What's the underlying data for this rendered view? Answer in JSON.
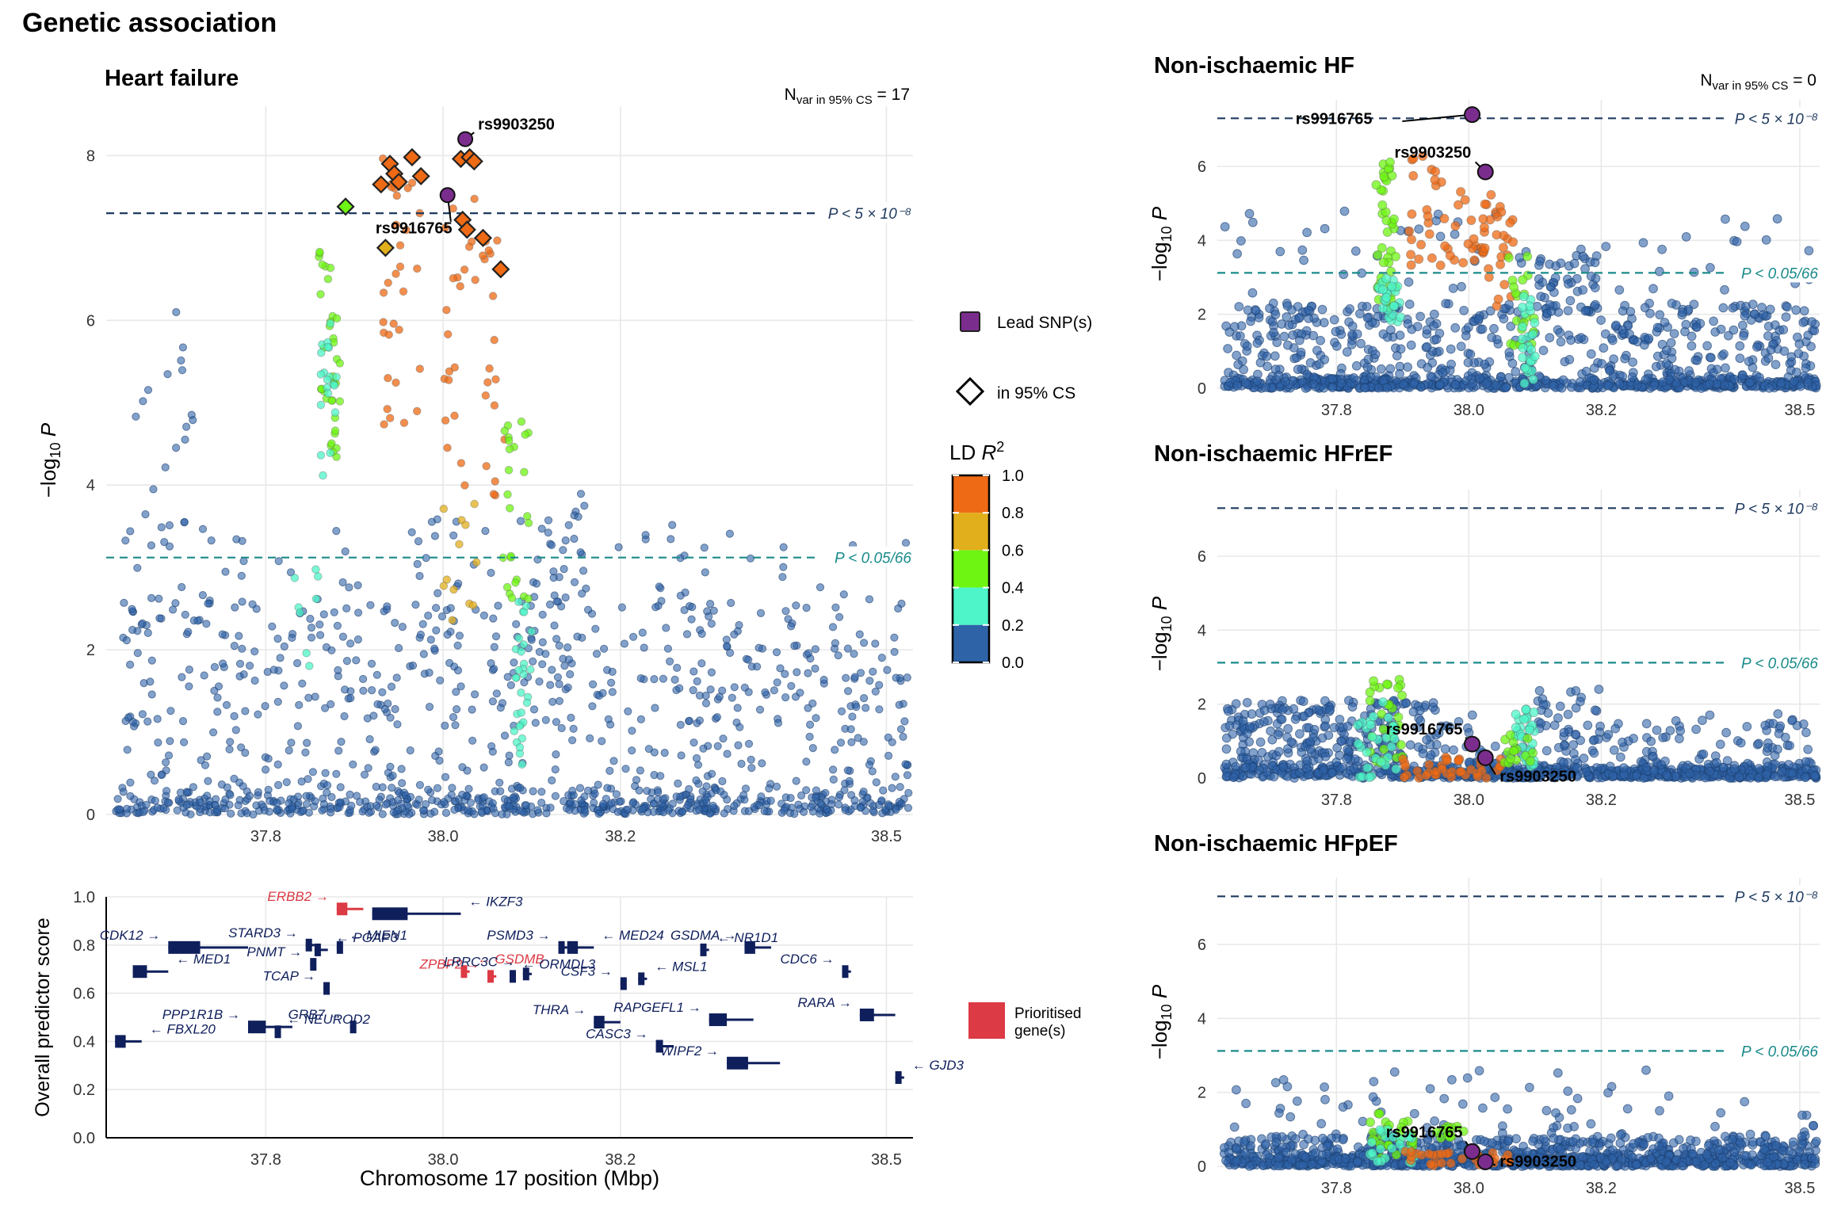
{
  "figure_title": "Genetic association",
  "colors": {
    "lead": "#7B2D8E",
    "ld_bins": [
      "#2E63A8",
      "#4DF5C8",
      "#6EF512",
      "#E2AF1C",
      "#EE6A14"
    ],
    "genome_line": "#1F3A5F",
    "suggestive_line": "#1A8A8A",
    "gene": "#0F1F5C",
    "prioritised_gene": "#DC3A45"
  },
  "legend": {
    "lead_label": "Lead SNP(s)",
    "cs_label": "in 95% CS",
    "ld_title": "LD R²",
    "ld_ticks": [
      "1.0",
      "0.8",
      "0.6",
      "0.4",
      "0.2",
      "0.0"
    ],
    "prioritised_label_1": "Prioritised",
    "prioritised_label_2": "gene(s)"
  },
  "chart_data": [
    {
      "type": "scatter",
      "panel": "main",
      "title": "Heart failure",
      "nvar_label": "N",
      "nvar_sub": "var in 95% CS",
      "nvar_value": " = 17",
      "ylabel": "−log₁₀ P",
      "xlim": [
        37.62,
        38.53
      ],
      "ylim": [
        0,
        8.6
      ],
      "x_ticks": [
        "37.8",
        "38.0",
        "38.2",
        "38.5"
      ],
      "x_tick_values": [
        37.8,
        38.0,
        38.2,
        38.5
      ],
      "y_ticks": [
        "0",
        "2",
        "4",
        "6",
        "8"
      ],
      "y_tick_values": [
        0,
        2,
        4,
        6,
        8
      ],
      "threshold_genome_label": "P < 5 × 10⁻⁸",
      "threshold_genome_value": 7.3,
      "threshold_suggestive_label": "P < 0.05/66",
      "threshold_suggestive_value": 3.12,
      "lead_snps": [
        {
          "id": "rs9903250",
          "x": 38.025,
          "y": 8.2
        },
        {
          "id": "rs9916765",
          "x": 38.005,
          "y": 7.52
        }
      ],
      "credible_set": [
        {
          "x": 37.89,
          "y": 7.38,
          "ld": 0.45
        },
        {
          "x": 37.93,
          "y": 7.65,
          "ld": 0.9
        },
        {
          "x": 37.94,
          "y": 7.9,
          "ld": 0.9
        },
        {
          "x": 37.945,
          "y": 7.78,
          "ld": 0.9
        },
        {
          "x": 37.95,
          "y": 7.68,
          "ld": 0.9
        },
        {
          "x": 37.965,
          "y": 7.98,
          "ld": 0.9
        },
        {
          "x": 37.975,
          "y": 7.75,
          "ld": 0.9
        },
        {
          "x": 37.935,
          "y": 6.88,
          "ld": 0.7
        },
        {
          "x": 38.02,
          "y": 7.96,
          "ld": 0.95
        },
        {
          "x": 38.03,
          "y": 7.98,
          "ld": 0.95
        },
        {
          "x": 38.035,
          "y": 7.93,
          "ld": 0.95
        },
        {
          "x": 38.022,
          "y": 7.22,
          "ld": 0.9
        },
        {
          "x": 38.027,
          "y": 7.1,
          "ld": 0.9
        },
        {
          "x": 38.045,
          "y": 7.0,
          "ld": 0.9
        },
        {
          "x": 38.065,
          "y": 6.62,
          "ld": 0.9
        }
      ]
    },
    {
      "type": "scatter",
      "panel": "non_isch_hf",
      "title": "Non-ischaemic HF",
      "nvar_label": "N",
      "nvar_sub": "var in 95% CS",
      "nvar_value": " = 0",
      "ylabel": "−log₁₀ P",
      "xlim": [
        37.62,
        38.53
      ],
      "ylim": [
        0,
        7.8
      ],
      "x_ticks": [
        "37.8",
        "38.0",
        "38.2",
        "38.5"
      ],
      "x_tick_values": [
        37.8,
        38.0,
        38.2,
        38.5
      ],
      "y_ticks": [
        "0",
        "2",
        "4",
        "6"
      ],
      "y_tick_values": [
        0,
        2,
        4,
        6
      ],
      "threshold_genome_label": "P < 5 × 10⁻⁸",
      "threshold_genome_value": 7.3,
      "threshold_suggestive_label": "P < 0.05/66",
      "threshold_suggestive_value": 3.12,
      "lead_snps": [
        {
          "id": "rs9916765",
          "x": 38.005,
          "y": 7.4
        },
        {
          "id": "rs9903250",
          "x": 38.025,
          "y": 5.85
        }
      ]
    },
    {
      "type": "scatter",
      "panel": "non_isch_hfref",
      "title": "Non-ischaemic HFrEF",
      "ylabel": "−log₁₀ P",
      "xlim": [
        37.62,
        38.53
      ],
      "ylim": [
        0,
        7.8
      ],
      "x_ticks": [
        "37.8",
        "38.0",
        "38.2",
        "38.5"
      ],
      "x_tick_values": [
        37.8,
        38.0,
        38.2,
        38.5
      ],
      "y_ticks": [
        "0",
        "2",
        "4",
        "6"
      ],
      "y_tick_values": [
        0,
        2,
        4,
        6
      ],
      "threshold_genome_label": "P < 5 × 10⁻⁸",
      "threshold_genome_value": 7.3,
      "threshold_suggestive_label": "P < 0.05/66",
      "threshold_suggestive_value": 3.12,
      "lead_snps": [
        {
          "id": "rs9916765",
          "x": 38.005,
          "y": 0.92
        },
        {
          "id": "rs9903250",
          "x": 38.025,
          "y": 0.55
        }
      ]
    },
    {
      "type": "scatter",
      "panel": "non_isch_hfpef",
      "title": "Non-ischaemic HFpEF",
      "ylabel": "−log₁₀ P",
      "xlim": [
        37.62,
        38.53
      ],
      "ylim": [
        0,
        7.8
      ],
      "x_ticks": [
        "37.8",
        "38.0",
        "38.2",
        "38.5"
      ],
      "x_tick_values": [
        37.8,
        38.0,
        38.2,
        38.5
      ],
      "y_ticks": [
        "0",
        "2",
        "4",
        "6"
      ],
      "y_tick_values": [
        0,
        2,
        4,
        6
      ],
      "threshold_genome_label": "P < 5 × 10⁻⁸",
      "threshold_genome_value": 7.3,
      "threshold_suggestive_label": "P < 0.05/66",
      "threshold_suggestive_value": 3.12,
      "lead_snps": [
        {
          "id": "rs9916765",
          "x": 38.005,
          "y": 0.4
        },
        {
          "id": "rs9903250",
          "x": 38.025,
          "y": 0.12
        }
      ]
    },
    {
      "type": "gene_track",
      "panel": "genes",
      "xlabel": "Chromosome 17 position (Mbp)",
      "ylabel": "Overall predictor score",
      "xlim": [
        37.62,
        38.53
      ],
      "ylim": [
        0,
        1.0
      ],
      "x_ticks": [
        "37.8",
        "38.0",
        "38.2",
        "38.5"
      ],
      "x_tick_values": [
        37.8,
        38.0,
        38.2,
        38.5
      ],
      "y_ticks": [
        "0.0",
        "0.2",
        "0.4",
        "0.6",
        "0.8",
        "1.0"
      ],
      "y_tick_values": [
        0,
        0.2,
        0.4,
        0.6,
        0.8,
        1.0
      ],
      "genes": [
        {
          "label": "← MED1",
          "start": 37.65,
          "end": 37.69,
          "score": 0.69,
          "prioritised": false
        },
        {
          "label": "CDK12 →",
          "start": 37.69,
          "end": 37.78,
          "score": 0.79,
          "prioritised": false
        },
        {
          "label": "← FBXL20",
          "start": 37.63,
          "end": 37.66,
          "score": 0.4,
          "prioritised": false
        },
        {
          "label": "STARD3 →",
          "start": 37.845,
          "end": 37.855,
          "score": 0.8,
          "prioritised": false
        },
        {
          "label": "ERBB2 →",
          "start": 37.88,
          "end": 37.91,
          "score": 0.95,
          "prioritised": true
        },
        {
          "label": "← IKZF3",
          "start": 37.92,
          "end": 38.02,
          "score": 0.93,
          "prioritised": false
        },
        {
          "label": "← PGAP3",
          "start": 37.855,
          "end": 37.87,
          "score": 0.78,
          "prioritised": false
        },
        {
          "label": "← MIEN1",
          "start": 37.88,
          "end": 37.885,
          "score": 0.79,
          "prioritised": false
        },
        {
          "label": "PNMT →",
          "start": 37.85,
          "end": 37.855,
          "score": 0.72,
          "prioritised": false
        },
        {
          "label": "TCAP →",
          "start": 37.865,
          "end": 37.868,
          "score": 0.62,
          "prioritised": false
        },
        {
          "label": "← GSDMB",
          "start": 38.02,
          "end": 38.03,
          "score": 0.69,
          "prioritised": true
        },
        {
          "label": "ZPBP2 →",
          "start": 38.05,
          "end": 38.06,
          "score": 0.67,
          "prioritised": true
        },
        {
          "label": "← ORMDL3",
          "start": 38.075,
          "end": 38.08,
          "score": 0.67,
          "prioritised": false
        },
        {
          "label": "LRRC3C →",
          "start": 38.09,
          "end": 38.1,
          "score": 0.68,
          "prioritised": false
        },
        {
          "label": "PSMD3 →",
          "start": 38.13,
          "end": 38.14,
          "score": 0.79,
          "prioritised": false
        },
        {
          "label": "← MED24",
          "start": 38.14,
          "end": 38.17,
          "score": 0.79,
          "prioritised": false
        },
        {
          "label": "CSF3 →",
          "start": 38.2,
          "end": 38.205,
          "score": 0.64,
          "prioritised": false
        },
        {
          "label": "← NEUROD2",
          "start": 37.81,
          "end": 37.815,
          "score": 0.44,
          "prioritised": false
        },
        {
          "label": "PPP1R1B →",
          "start": 37.78,
          "end": 37.83,
          "score": 0.46,
          "prioritised": false
        },
        {
          "label": "GRB7 →",
          "start": 37.895,
          "end": 37.9,
          "score": 0.46,
          "prioritised": false
        },
        {
          "label": "THRA →",
          "start": 38.17,
          "end": 38.2,
          "score": 0.48,
          "prioritised": false
        },
        {
          "label": "CASC3 →",
          "start": 38.24,
          "end": 38.26,
          "score": 0.38,
          "prioritised": false
        },
        {
          "label": "← MSL1",
          "start": 38.22,
          "end": 38.23,
          "score": 0.66,
          "prioritised": false
        },
        {
          "label": "← NR1D1",
          "start": 38.29,
          "end": 38.3,
          "score": 0.78,
          "prioritised": false
        },
        {
          "label": "RAPGEFL1 →",
          "start": 38.3,
          "end": 38.35,
          "score": 0.49,
          "prioritised": false
        },
        {
          "label": "WIPF2 →",
          "start": 38.32,
          "end": 38.38,
          "score": 0.31,
          "prioritised": false
        },
        {
          "label": "GSDMA →",
          "start": 38.34,
          "end": 38.37,
          "score": 0.79,
          "prioritised": false
        },
        {
          "label": "CDC6 →",
          "start": 38.45,
          "end": 38.46,
          "score": 0.69,
          "prioritised": false
        },
        {
          "label": "RARA →",
          "start": 38.47,
          "end": 38.51,
          "score": 0.51,
          "prioritised": false
        },
        {
          "label": "← GJD3",
          "start": 38.51,
          "end": 38.52,
          "score": 0.25,
          "prioritised": false
        }
      ]
    }
  ]
}
